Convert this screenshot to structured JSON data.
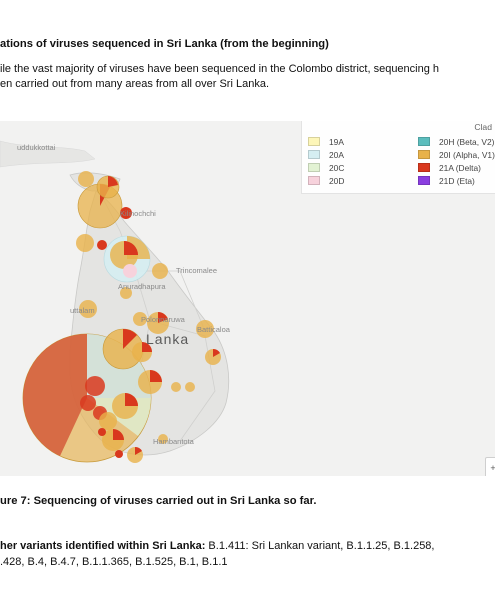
{
  "heading": "ations of viruses sequenced in Sri Lanka (from the beginning)",
  "paragraph": {
    "line1": "ile the vast majority of viruses have been sequenced in the Colombo district, sequencing h",
    "line2": "en carried out from many areas from all over Sri Lanka."
  },
  "map": {
    "legend_title": "Clad",
    "legend_left": [
      {
        "label": "19A",
        "color": "#fdf6b8"
      },
      {
        "label": "20A",
        "color": "#d5eef2"
      },
      {
        "label": "20C",
        "color": "#e2f2d3"
      },
      {
        "label": "20D",
        "color": "#f7d2dc"
      }
    ],
    "legend_right": [
      {
        "label": "20H (Beta, V2)",
        "color": "#5bbdbd"
      },
      {
        "label": "20I (Alpha, V1)",
        "color": "#e8b24a"
      },
      {
        "label": "21A (Delta)",
        "color": "#d9381e"
      },
      {
        "label": "21D (Eta)",
        "color": "#8a3ee0"
      }
    ],
    "places": {
      "mullaitivu": "uddukkottai",
      "kilinochchi": "Kilinochchi",
      "trincomalee": "Trincomalee",
      "anuradhapura": "Anuradhapura",
      "puttalam": "uttalam",
      "polonnaruwa": "Polonnaruwa",
      "batticaloa": "Batticaloa",
      "lanka": "Lanka",
      "hambantota": "Hambantota"
    },
    "zoom_label": "+"
  },
  "caption": "ure 7: Sequencing of viruses carried out in Sri Lanka so far.",
  "variants": {
    "label": "her variants identified within Sri Lanka:",
    "line1_rest": " B.1.411: Sri Lankan variant, B.1.1.25, B.1.258,",
    "line2": ".428, B.4, B.4.7, B.1.1.365, B.1.525, B.1, B.1.1"
  }
}
